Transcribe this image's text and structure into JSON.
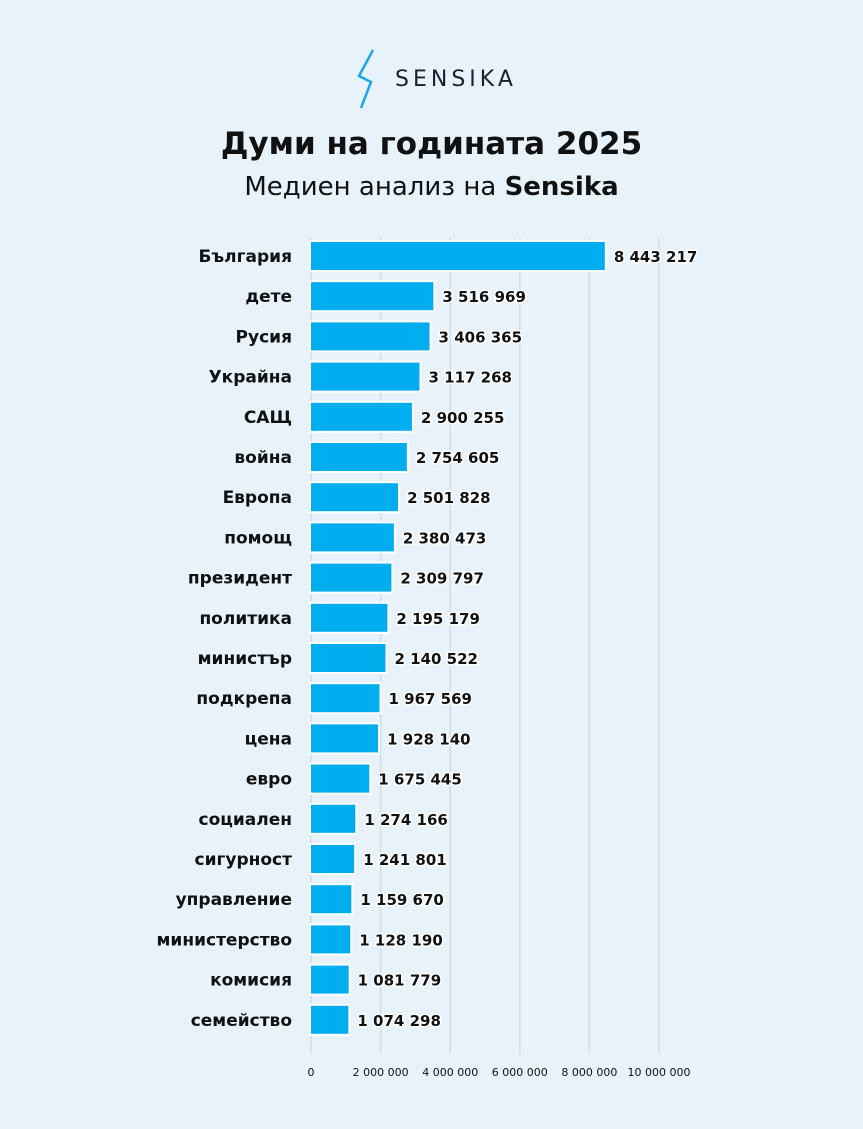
{
  "logo": {
    "text": "SENSIKA",
    "icon": "lightning-bolt-icon",
    "color": "#1ea7e8"
  },
  "title": "Думи на годината 2025",
  "subtitle_prefix": "Медиен анализ на ",
  "subtitle_brand": "Sensika",
  "colors": {
    "bar": "#00aeef",
    "background": "#e7f2fb",
    "grid": "#d3dde6"
  },
  "chart_data": {
    "type": "bar",
    "orientation": "horizontal",
    "categories": [
      "България",
      "дете",
      "Русия",
      "Украйна",
      "САЩ",
      "война",
      "Европа",
      "помощ",
      "президент",
      "политика",
      "министър",
      "подкрепа",
      "цена",
      "евро",
      "социален",
      "сигурност",
      "управление",
      "министерство",
      "комисия",
      "семейство"
    ],
    "values": [
      8443217,
      3516969,
      3406365,
      3117268,
      2900255,
      2754605,
      2501828,
      2380473,
      2309797,
      2195179,
      2140522,
      1967569,
      1928140,
      1675445,
      1274166,
      1241801,
      1159670,
      1128190,
      1081779,
      1074298
    ],
    "value_labels": [
      "8 443 217",
      "3 516 969",
      "3 406 365",
      "3 117 268",
      "2 900 255",
      "2 754 605",
      "2 501 828",
      "2 380 473",
      "2 309 797",
      "2 195 179",
      "2 140 522",
      "1 967 569",
      "1 928 140",
      "1 675 445",
      "1 274 166",
      "1 241 801",
      "1 159 670",
      "1 128 190",
      "1 081 779",
      "1 074 298"
    ],
    "xlim": [
      0,
      10000000
    ],
    "x_ticks": [
      0,
      2000000,
      4000000,
      6000000,
      8000000,
      10000000
    ],
    "x_tick_labels": [
      "0",
      "2 000 000",
      "4 000 000",
      "6 000 000",
      "8 000 000",
      "10 000 000"
    ],
    "grid": true
  }
}
